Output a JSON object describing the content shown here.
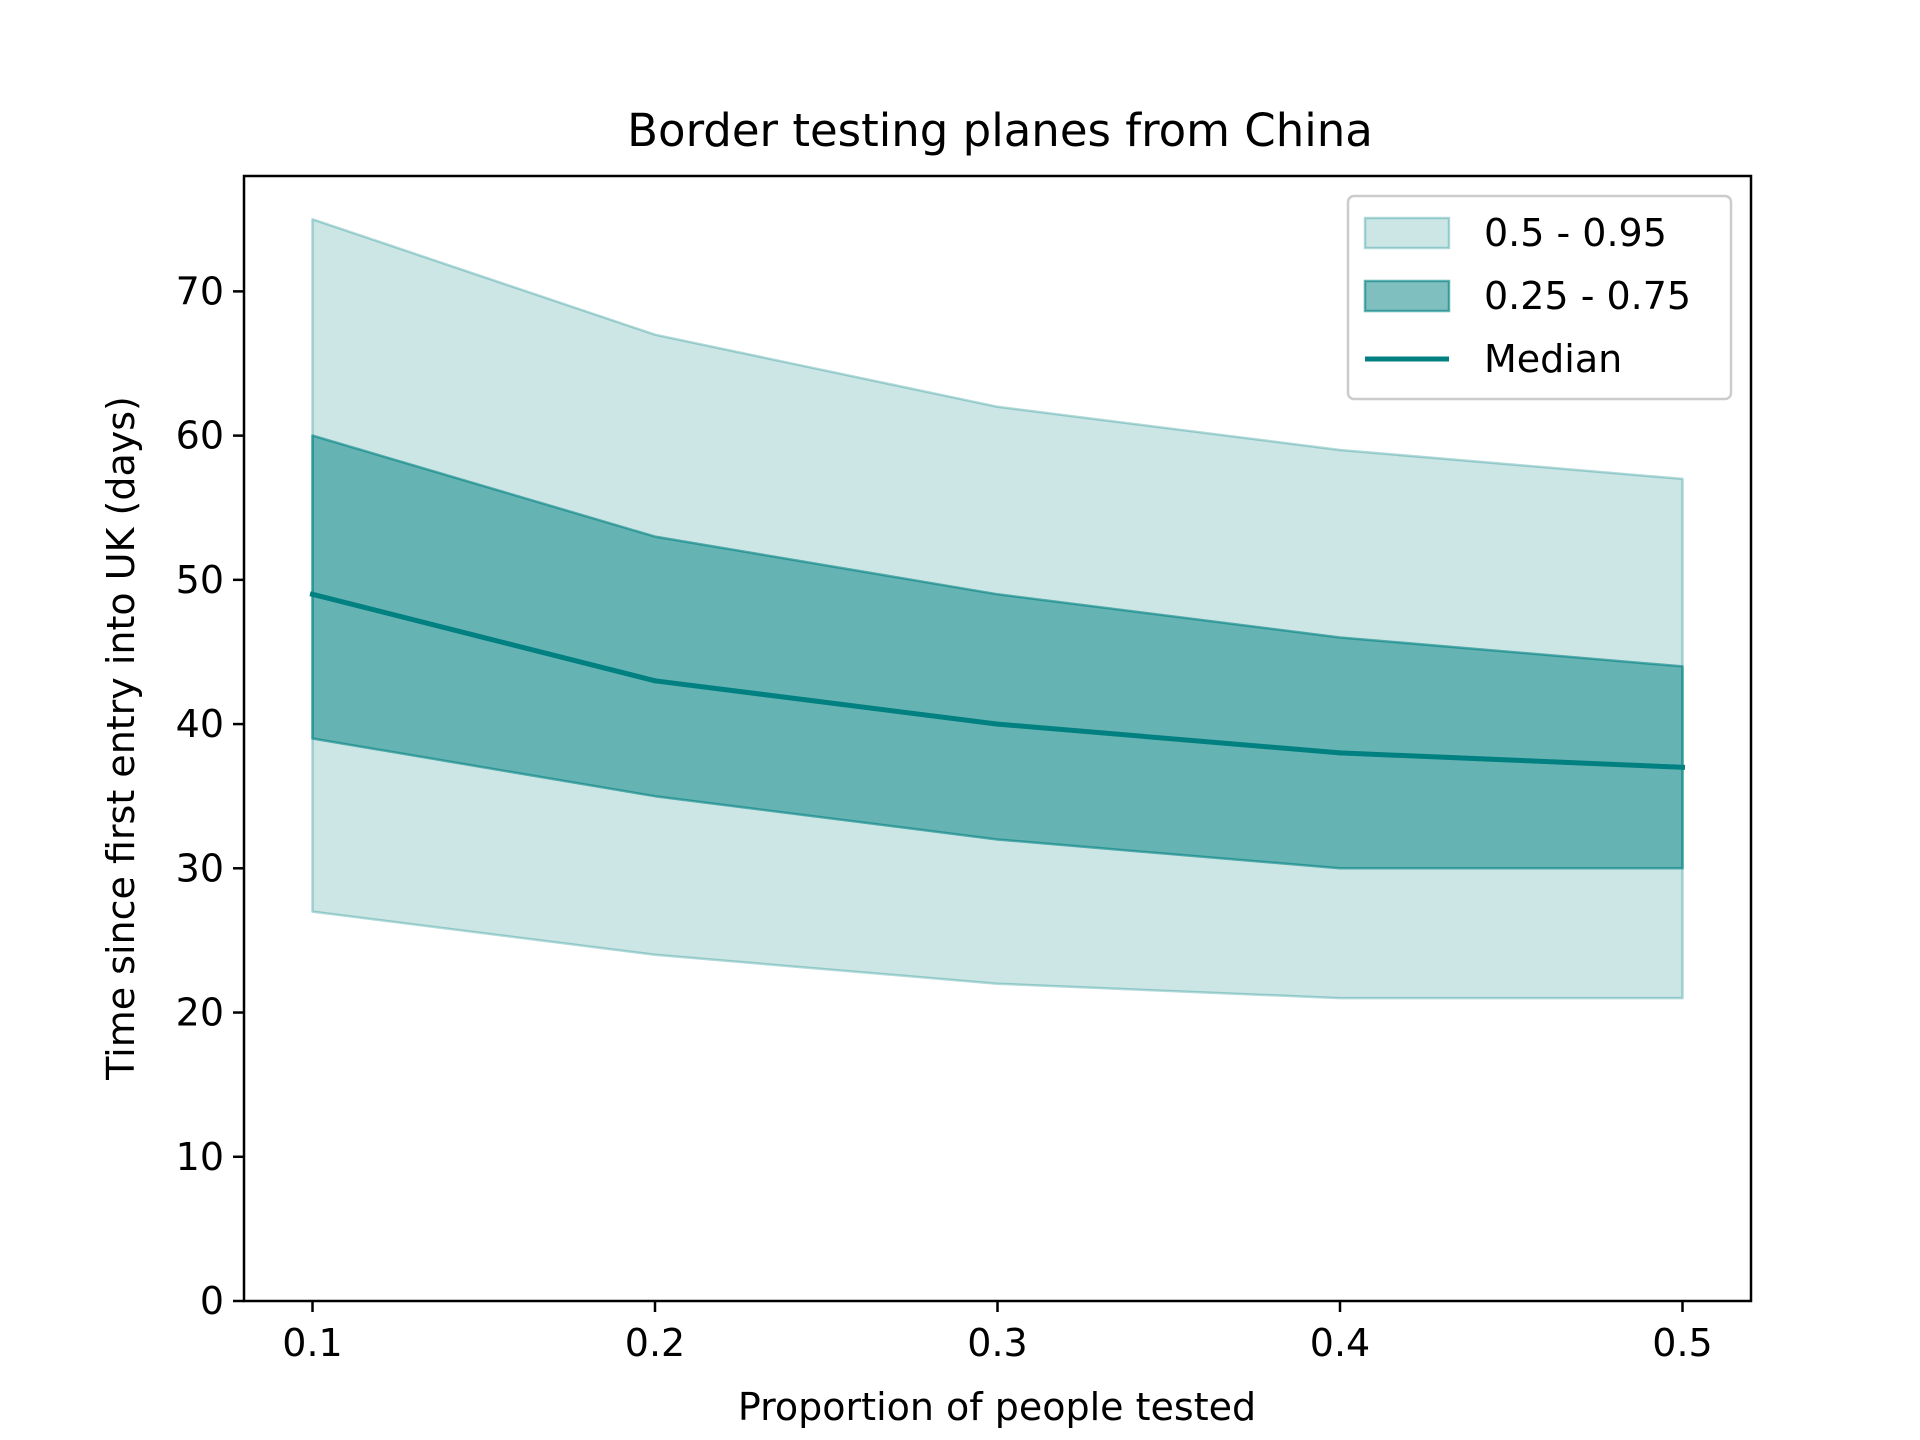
{
  "chart_data": {
    "type": "area",
    "title": "Border testing planes from China",
    "xlabel": "Proportion of people tested",
    "ylabel": "Time since first entry into UK (days)",
    "x": [
      0.1,
      0.2,
      0.3,
      0.4,
      0.5
    ],
    "xlim": [
      0.08,
      0.52
    ],
    "ylim": [
      0,
      78
    ],
    "x_ticks": [
      "0.1",
      "0.2",
      "0.3",
      "0.4",
      "0.5"
    ],
    "y_ticks": [
      "0",
      "10",
      "20",
      "30",
      "40",
      "50",
      "60",
      "70"
    ],
    "grid": false,
    "legend_position": "top-right",
    "series": [
      {
        "name": "0.5 - 0.95",
        "kind": "band",
        "lower": [
          27,
          24,
          22,
          21,
          21
        ],
        "upper": [
          75,
          67,
          62,
          59,
          57
        ],
        "color": "#008080",
        "fill_opacity": 0.2
      },
      {
        "name": "0.25 - 0.75",
        "kind": "band",
        "lower": [
          39,
          35,
          32,
          30,
          30
        ],
        "upper": [
          60,
          53,
          49,
          46,
          44
        ],
        "color": "#008080",
        "fill_opacity": 0.5
      },
      {
        "name": "Median",
        "kind": "line",
        "values": [
          49,
          43,
          40,
          38,
          37
        ],
        "color": "#008080"
      }
    ]
  }
}
